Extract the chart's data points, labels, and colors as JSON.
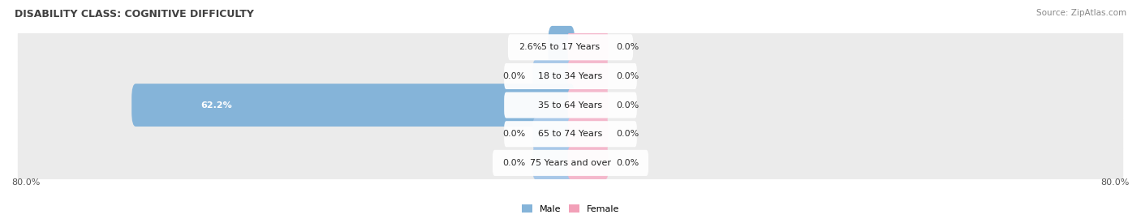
{
  "title": "DISABILITY CLASS: COGNITIVE DIFFICULTY",
  "source": "Source: ZipAtlas.com",
  "categories": [
    "5 to 17 Years",
    "18 to 34 Years",
    "35 to 64 Years",
    "65 to 74 Years",
    "75 Years and over"
  ],
  "male_values": [
    2.6,
    0.0,
    62.2,
    0.0,
    0.0
  ],
  "female_values": [
    0.0,
    0.0,
    0.0,
    0.0,
    0.0
  ],
  "male_color": "#85b4d9",
  "female_color": "#f2a0b8",
  "male_stub_color": "#a8c8e8",
  "female_stub_color": "#f4b8cc",
  "row_bg_color": "#ebebeb",
  "row_bg_alt": "#e0e0e0",
  "axis_min": -80.0,
  "axis_max": 80.0,
  "stub_size": 5.0,
  "label_fontsize": 8.0,
  "title_fontsize": 9.0,
  "source_fontsize": 7.5,
  "cat_fontsize": 8.0
}
